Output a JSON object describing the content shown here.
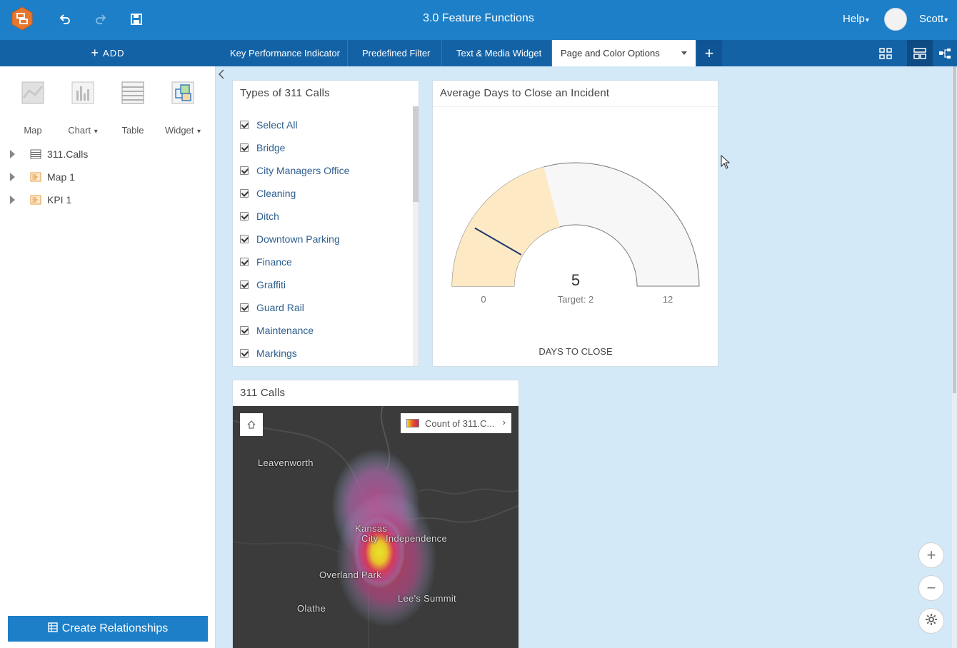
{
  "header": {
    "title": "3.0 Feature Functions",
    "help_label": "Help",
    "user_name": "Scott"
  },
  "tabbar": {
    "add_label": "ADD",
    "tabs": [
      {
        "label": "Key Performance Indicator"
      },
      {
        "label": "Predefined Filter"
      },
      {
        "label": "Text & Media Widget"
      },
      {
        "label": "Page and Color Options"
      }
    ]
  },
  "left_panel": {
    "add_types": [
      {
        "label": "Map"
      },
      {
        "label": "Chart"
      },
      {
        "label": "Table"
      },
      {
        "label": "Widget"
      }
    ],
    "tree": [
      {
        "label": "311.Calls"
      },
      {
        "label": "Map 1"
      },
      {
        "label": "KPI 1"
      }
    ],
    "create_relationships_label": "Create Relationships"
  },
  "filter_card": {
    "title": "Types of 311 Calls",
    "items": [
      "Select All",
      "Bridge",
      "City Managers Office",
      "Cleaning",
      "Ditch",
      "Downtown Parking",
      "Finance",
      "Graffiti",
      "Guard Rail",
      "Maintenance",
      "Markings"
    ]
  },
  "gauge_card": {
    "title": "Average Days to Close an Incident",
    "value": "5",
    "target_label": "Target: 2",
    "min_label": "0",
    "max_label": "12",
    "footer_label": "DAYS TO CLOSE",
    "min": 0,
    "max": 12,
    "current": 5,
    "target": 2,
    "colors": {
      "fill": "#fde9c4",
      "empty": "#f7f7f7",
      "needle": "#1c3a6b"
    }
  },
  "map_card": {
    "title": "311 Calls",
    "legend_label": "Count of 311.C...",
    "places": [
      "Leavenworth",
      "Kansas",
      "City",
      "Independence",
      "Overland Park",
      "Lee's Summit",
      "Olathe"
    ]
  },
  "colors": {
    "topbar": "#1c7fc8",
    "tabbar": "#1462a6",
    "canvas": "#d4e9f7",
    "accent": "#1c7fc8"
  }
}
